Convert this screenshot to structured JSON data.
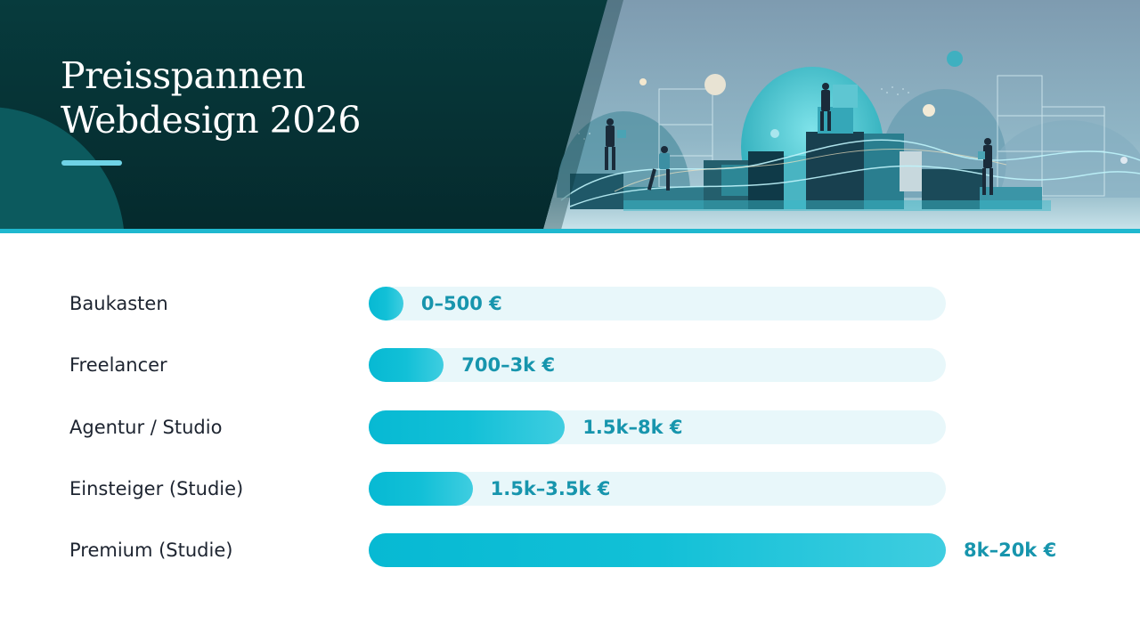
{
  "header": {
    "title_line1": "Preisspannen",
    "title_line2": "Webdesign 2026"
  },
  "colors": {
    "banner_dark": "#052a2d",
    "accent": "#1fb8cf",
    "bar": "#12c0d7",
    "track": "#e8f7fa",
    "value_text": "#1795ad"
  },
  "chart_data": {
    "type": "bar",
    "orientation": "horizontal",
    "title": "Preisspannen Webdesign 2026",
    "categories": [
      "Baukasten",
      "Freelancer",
      "Agentur / Studio",
      "Einsteiger (Studie)",
      "Premium (Studie)"
    ],
    "value_labels": [
      "0–500 €",
      "700–3k €",
      "1.5k–8k €",
      "1.5k–3.5k €",
      "8k–20k €"
    ],
    "values": [
      0.06,
      0.13,
      0.34,
      0.18,
      1.0
    ],
    "scale": "relative bar length (fraction of track)",
    "grid": false,
    "legend": "none"
  }
}
